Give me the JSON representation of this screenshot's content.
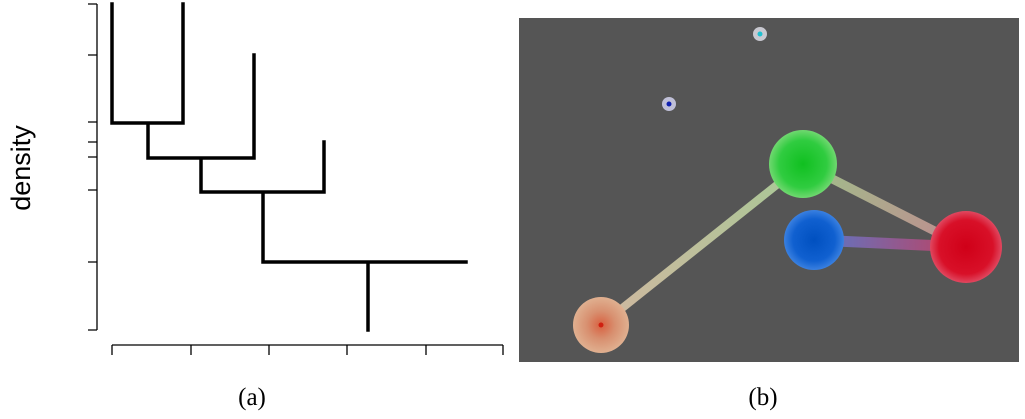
{
  "figure": {
    "y_label": "density",
    "caption_a": "(a)",
    "caption_b": "(b)"
  }
}
